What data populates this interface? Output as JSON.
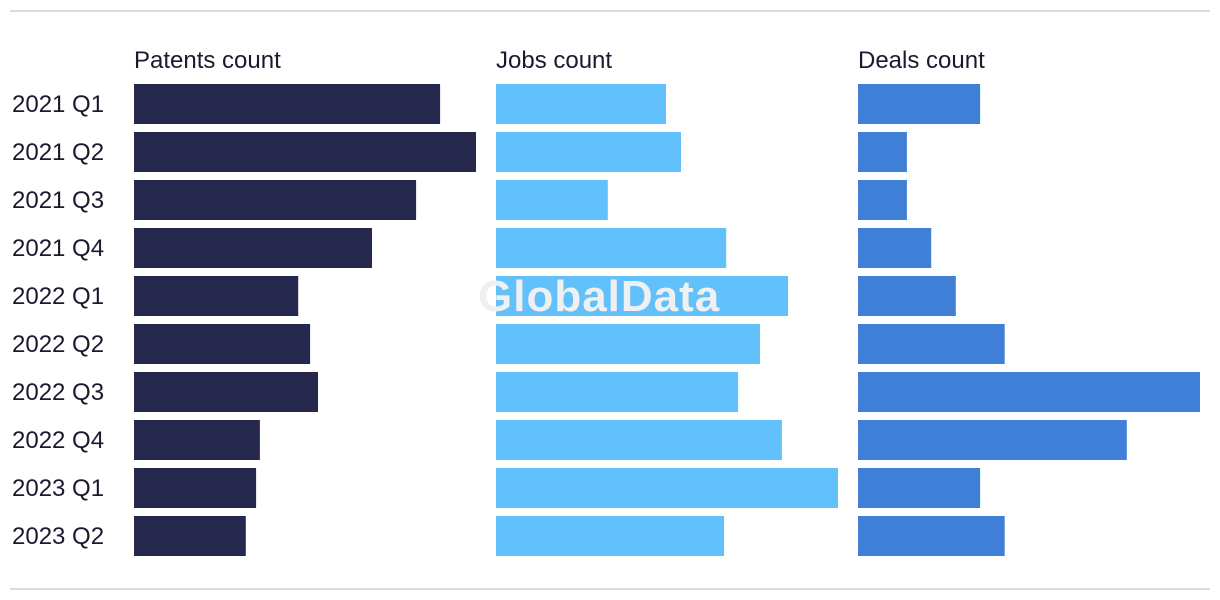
{
  "watermark": "GlobalData",
  "chart_data": {
    "type": "bar",
    "orientation": "horizontal",
    "categories": [
      "2021 Q1",
      "2021 Q2",
      "2021 Q3",
      "2021 Q4",
      "2022 Q1",
      "2022 Q2",
      "2022 Q3",
      "2022 Q4",
      "2023 Q1",
      "2023 Q2"
    ],
    "series": [
      {
        "name": "Patents count",
        "color": "#27284d",
        "values": [
          89.5,
          100,
          82.5,
          69.6,
          48,
          51.5,
          53.8,
          36.8,
          35.7,
          32.7
        ]
      },
      {
        "name": "Jobs count",
        "color": "#62c1fa",
        "values": [
          49.7,
          54.1,
          32.7,
          67.3,
          85.4,
          77.2,
          70.8,
          83.6,
          100,
          66.7
        ]
      },
      {
        "name": "Deals count",
        "color": "#407fd8",
        "values": [
          35.7,
          14.3,
          14.3,
          21.4,
          28.6,
          42.9,
          100,
          78.6,
          35.7,
          42.9
        ]
      }
    ],
    "value_scale": "relative, each panel scaled to its own maximum (no axis printed)",
    "grid": false,
    "legend": "none; panel titles above each column"
  }
}
